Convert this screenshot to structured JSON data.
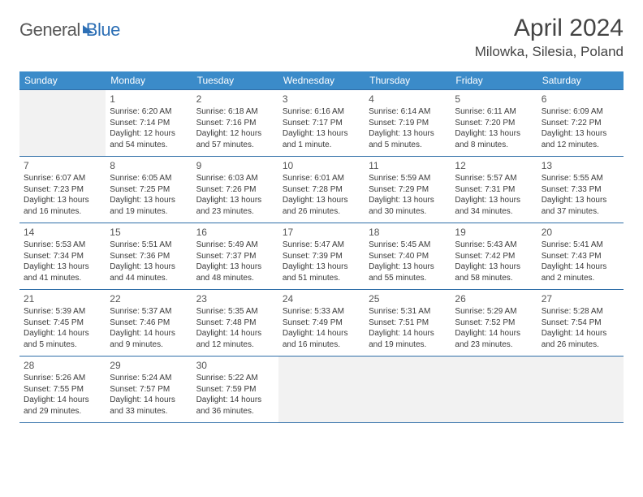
{
  "brand": {
    "part1": "General",
    "part2": "Blue"
  },
  "title": "April 2024",
  "location": "Milowka, Silesia, Poland",
  "style": {
    "header_bg": "#3b8bc9",
    "header_fg": "#ffffff",
    "border_color": "#2f6ea8",
    "empty_bg": "#f2f2f2",
    "text_color": "#3a3a3a",
    "daynum_color": "#555555",
    "title_fontsize": 30,
    "location_fontsize": 17,
    "dayheader_fontsize": 12,
    "cell_fontsize": 10
  },
  "day_headers": [
    "Sunday",
    "Monday",
    "Tuesday",
    "Wednesday",
    "Thursday",
    "Friday",
    "Saturday"
  ],
  "weeks": [
    [
      {
        "empty": true
      },
      {
        "day": "1",
        "sunrise": "Sunrise: 6:20 AM",
        "sunset": "Sunset: 7:14 PM",
        "daylight": "Daylight: 12 hours and 54 minutes."
      },
      {
        "day": "2",
        "sunrise": "Sunrise: 6:18 AM",
        "sunset": "Sunset: 7:16 PM",
        "daylight": "Daylight: 12 hours and 57 minutes."
      },
      {
        "day": "3",
        "sunrise": "Sunrise: 6:16 AM",
        "sunset": "Sunset: 7:17 PM",
        "daylight": "Daylight: 13 hours and 1 minute."
      },
      {
        "day": "4",
        "sunrise": "Sunrise: 6:14 AM",
        "sunset": "Sunset: 7:19 PM",
        "daylight": "Daylight: 13 hours and 5 minutes."
      },
      {
        "day": "5",
        "sunrise": "Sunrise: 6:11 AM",
        "sunset": "Sunset: 7:20 PM",
        "daylight": "Daylight: 13 hours and 8 minutes."
      },
      {
        "day": "6",
        "sunrise": "Sunrise: 6:09 AM",
        "sunset": "Sunset: 7:22 PM",
        "daylight": "Daylight: 13 hours and 12 minutes."
      }
    ],
    [
      {
        "day": "7",
        "sunrise": "Sunrise: 6:07 AM",
        "sunset": "Sunset: 7:23 PM",
        "daylight": "Daylight: 13 hours and 16 minutes."
      },
      {
        "day": "8",
        "sunrise": "Sunrise: 6:05 AM",
        "sunset": "Sunset: 7:25 PM",
        "daylight": "Daylight: 13 hours and 19 minutes."
      },
      {
        "day": "9",
        "sunrise": "Sunrise: 6:03 AM",
        "sunset": "Sunset: 7:26 PM",
        "daylight": "Daylight: 13 hours and 23 minutes."
      },
      {
        "day": "10",
        "sunrise": "Sunrise: 6:01 AM",
        "sunset": "Sunset: 7:28 PM",
        "daylight": "Daylight: 13 hours and 26 minutes."
      },
      {
        "day": "11",
        "sunrise": "Sunrise: 5:59 AM",
        "sunset": "Sunset: 7:29 PM",
        "daylight": "Daylight: 13 hours and 30 minutes."
      },
      {
        "day": "12",
        "sunrise": "Sunrise: 5:57 AM",
        "sunset": "Sunset: 7:31 PM",
        "daylight": "Daylight: 13 hours and 34 minutes."
      },
      {
        "day": "13",
        "sunrise": "Sunrise: 5:55 AM",
        "sunset": "Sunset: 7:33 PM",
        "daylight": "Daylight: 13 hours and 37 minutes."
      }
    ],
    [
      {
        "day": "14",
        "sunrise": "Sunrise: 5:53 AM",
        "sunset": "Sunset: 7:34 PM",
        "daylight": "Daylight: 13 hours and 41 minutes."
      },
      {
        "day": "15",
        "sunrise": "Sunrise: 5:51 AM",
        "sunset": "Sunset: 7:36 PM",
        "daylight": "Daylight: 13 hours and 44 minutes."
      },
      {
        "day": "16",
        "sunrise": "Sunrise: 5:49 AM",
        "sunset": "Sunset: 7:37 PM",
        "daylight": "Daylight: 13 hours and 48 minutes."
      },
      {
        "day": "17",
        "sunrise": "Sunrise: 5:47 AM",
        "sunset": "Sunset: 7:39 PM",
        "daylight": "Daylight: 13 hours and 51 minutes."
      },
      {
        "day": "18",
        "sunrise": "Sunrise: 5:45 AM",
        "sunset": "Sunset: 7:40 PM",
        "daylight": "Daylight: 13 hours and 55 minutes."
      },
      {
        "day": "19",
        "sunrise": "Sunrise: 5:43 AM",
        "sunset": "Sunset: 7:42 PM",
        "daylight": "Daylight: 13 hours and 58 minutes."
      },
      {
        "day": "20",
        "sunrise": "Sunrise: 5:41 AM",
        "sunset": "Sunset: 7:43 PM",
        "daylight": "Daylight: 14 hours and 2 minutes."
      }
    ],
    [
      {
        "day": "21",
        "sunrise": "Sunrise: 5:39 AM",
        "sunset": "Sunset: 7:45 PM",
        "daylight": "Daylight: 14 hours and 5 minutes."
      },
      {
        "day": "22",
        "sunrise": "Sunrise: 5:37 AM",
        "sunset": "Sunset: 7:46 PM",
        "daylight": "Daylight: 14 hours and 9 minutes."
      },
      {
        "day": "23",
        "sunrise": "Sunrise: 5:35 AM",
        "sunset": "Sunset: 7:48 PM",
        "daylight": "Daylight: 14 hours and 12 minutes."
      },
      {
        "day": "24",
        "sunrise": "Sunrise: 5:33 AM",
        "sunset": "Sunset: 7:49 PM",
        "daylight": "Daylight: 14 hours and 16 minutes."
      },
      {
        "day": "25",
        "sunrise": "Sunrise: 5:31 AM",
        "sunset": "Sunset: 7:51 PM",
        "daylight": "Daylight: 14 hours and 19 minutes."
      },
      {
        "day": "26",
        "sunrise": "Sunrise: 5:29 AM",
        "sunset": "Sunset: 7:52 PM",
        "daylight": "Daylight: 14 hours and 23 minutes."
      },
      {
        "day": "27",
        "sunrise": "Sunrise: 5:28 AM",
        "sunset": "Sunset: 7:54 PM",
        "daylight": "Daylight: 14 hours and 26 minutes."
      }
    ],
    [
      {
        "day": "28",
        "sunrise": "Sunrise: 5:26 AM",
        "sunset": "Sunset: 7:55 PM",
        "daylight": "Daylight: 14 hours and 29 minutes."
      },
      {
        "day": "29",
        "sunrise": "Sunrise: 5:24 AM",
        "sunset": "Sunset: 7:57 PM",
        "daylight": "Daylight: 14 hours and 33 minutes."
      },
      {
        "day": "30",
        "sunrise": "Sunrise: 5:22 AM",
        "sunset": "Sunset: 7:59 PM",
        "daylight": "Daylight: 14 hours and 36 minutes."
      },
      {
        "empty": true
      },
      {
        "empty": true
      },
      {
        "empty": true
      },
      {
        "empty": true
      }
    ]
  ]
}
